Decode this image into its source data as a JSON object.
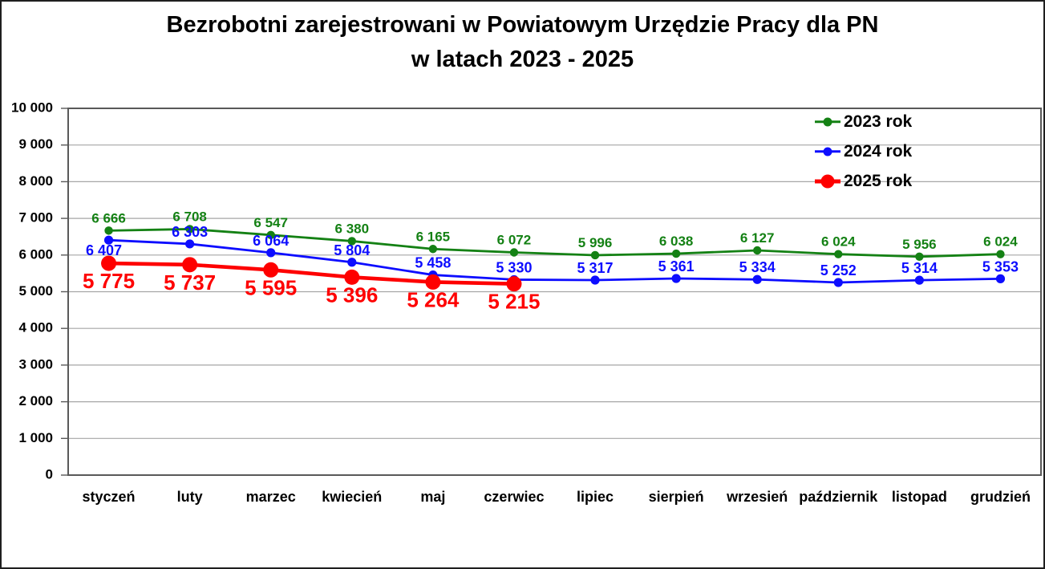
{
  "title": {
    "line1": "Bezrobotni zarejestrowani w Powiatowym Urzędzie Pracy dla PN",
    "line2": "w latach 2023 - 2025"
  },
  "chart_data": {
    "type": "line",
    "title": "Bezrobotni zarejestrowani w Powiatowym Urzędzie Pracy dla PN w latach 2023 - 2025",
    "categories": [
      "styczeń",
      "luty",
      "marzec",
      "kwiecień",
      "maj",
      "czerwiec",
      "lipiec",
      "sierpień",
      "wrzesień",
      "październik",
      "listopad",
      "grudzień"
    ],
    "series": [
      {
        "name": "2023 rok",
        "color": "#148114",
        "values": [
          6666,
          6708,
          6547,
          6380,
          6165,
          6072,
          5996,
          6038,
          6127,
          6024,
          5956,
          6024
        ]
      },
      {
        "name": "2024 rok",
        "color": "#0d0dff",
        "values": [
          6407,
          6303,
          6064,
          5804,
          5458,
          5330,
          5317,
          5361,
          5334,
          5252,
          5314,
          5353
        ]
      },
      {
        "name": "2025 rok",
        "color": "#fe0000",
        "values": [
          5775,
          5737,
          5595,
          5396,
          5264,
          5215
        ]
      }
    ],
    "ylim": [
      0,
      10000
    ],
    "ytick_interval": 1000,
    "ytick_labels": [
      "0",
      "1 000",
      "2 000",
      "3 000",
      "4 000",
      "5 000",
      "6 000",
      "7 000",
      "8 000",
      "9 000",
      "10 000"
    ],
    "grid": true,
    "legend_position": "top-right",
    "colors": {
      "gridline": "#a6a6a6",
      "axis": "#595959",
      "text": "#000000"
    }
  }
}
